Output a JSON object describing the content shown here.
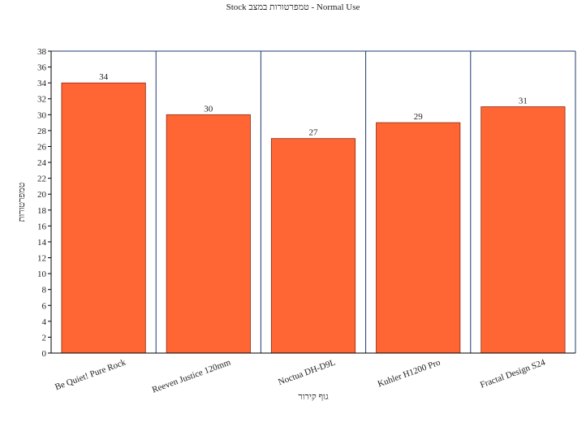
{
  "chart_data": {
    "type": "bar",
    "title": "Stock טמפרטורות במצב - Normal Use",
    "y_label": "טמפרטורות",
    "x_label": "גוף קירור",
    "categories": [
      "Be Quiet! Pure Rock",
      "Reeven Justice 120mm",
      "Noctua DH-D9L",
      "Kuhler H1200 Pro",
      "Fractal Design S24"
    ],
    "values": [
      34,
      30,
      27,
      29,
      31
    ],
    "color": "#ff6633",
    "ylim": [
      0,
      38
    ],
    "yticks": [
      0,
      2,
      4,
      6,
      8,
      10,
      12,
      14,
      16,
      18,
      20,
      22,
      24,
      26,
      28,
      30,
      32,
      34,
      36,
      38
    ],
    "grid": true
  }
}
